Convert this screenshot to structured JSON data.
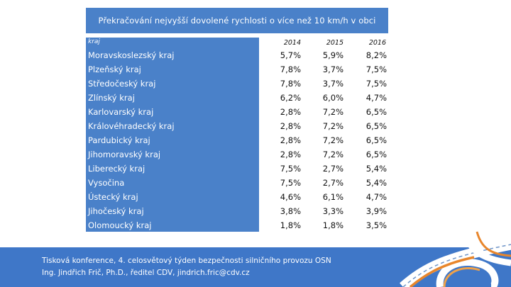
{
  "slide": {
    "title": "Překračování nejvyšší dovolené rychlosti o více než 10 km/h v obci"
  },
  "table": {
    "label_header": "kraj",
    "years": [
      "2014",
      "2015",
      "2016"
    ],
    "rows": [
      {
        "name": "Moravskoslezský kraj",
        "values": [
          "5,7%",
          "5,9%",
          "8,2%"
        ]
      },
      {
        "name": "Plzeňský kraj",
        "values": [
          "7,8%",
          "3,7%",
          "7,5%"
        ]
      },
      {
        "name": "Středočeský kraj",
        "values": [
          "7,8%",
          "3,7%",
          "7,5%"
        ]
      },
      {
        "name": "Zlínský kraj",
        "values": [
          "6,2%",
          "6,0%",
          "4,7%"
        ]
      },
      {
        "name": "Karlovarský kraj",
        "values": [
          "2,8%",
          "7,2%",
          "6,5%"
        ]
      },
      {
        "name": "Královéhradecký kraj",
        "values": [
          "2,8%",
          "7,2%",
          "6,5%"
        ]
      },
      {
        "name": "Pardubický kraj",
        "values": [
          "2,8%",
          "7,2%",
          "6,5%"
        ]
      },
      {
        "name": "Jihomoravský kraj",
        "values": [
          "2,8%",
          "7,2%",
          "6,5%"
        ]
      },
      {
        "name": "Liberecký kraj",
        "values": [
          "7,5%",
          "2,7%",
          "5,4%"
        ]
      },
      {
        "name": "Vysočina",
        "values": [
          "7,5%",
          "2,7%",
          "5,4%"
        ]
      },
      {
        "name": "Ústecký kraj",
        "values": [
          "4,6%",
          "6,1%",
          "4,7%"
        ]
      },
      {
        "name": "Jihočeský kraj",
        "values": [
          "3,8%",
          "3,3%",
          "3,9%"
        ]
      },
      {
        "name": "Olomoucký kraj",
        "values": [
          "1,8%",
          "1,8%",
          "3,5%"
        ]
      }
    ]
  },
  "footer": {
    "line1": "Tisková konference, 4. celosvětový týden bezpečnosti silničního provozu OSN",
    "line2": "Ing. Jindřich Frič, Ph.D., ředitel CDV, jindrich.fric@cdv.cz"
  },
  "colors": {
    "accent_blue": "#4a81c9",
    "footer_blue": "#3f77c8",
    "text_dark": "#111111",
    "text_light": "#ffffff"
  },
  "icons": {
    "footer_graphic": "road-interchange-icon"
  }
}
